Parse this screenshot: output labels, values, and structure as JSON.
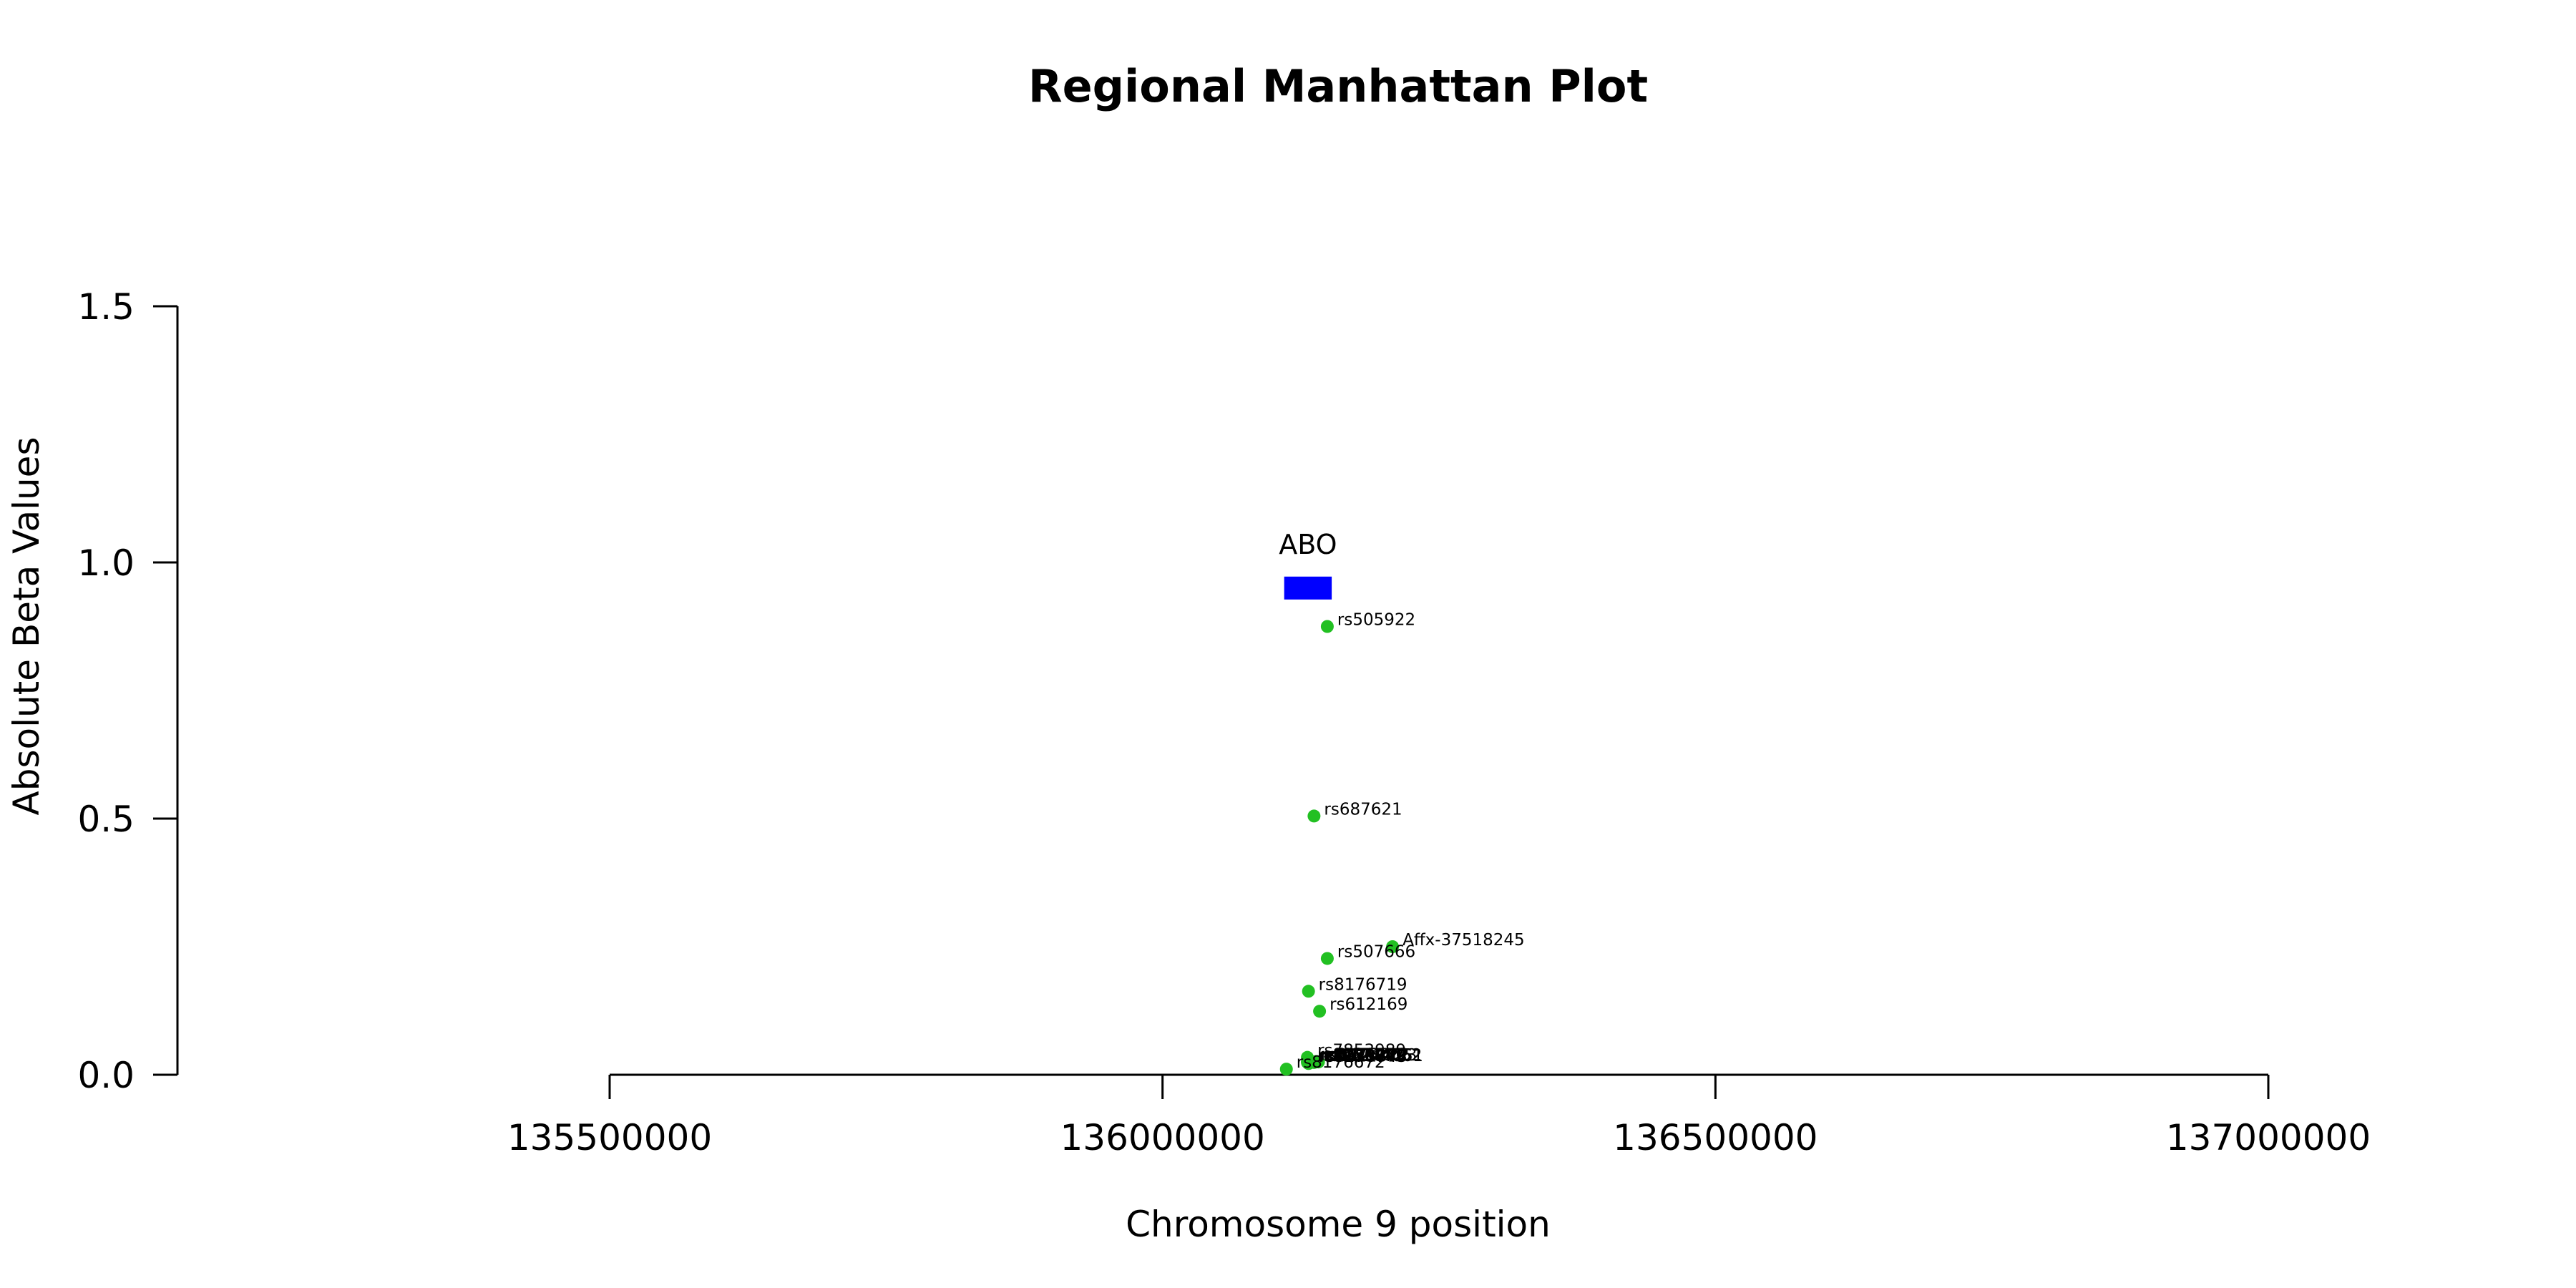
{
  "chart_data": {
    "type": "scatter",
    "title": "Regional Manhattan Plot",
    "xlabel": "Chromosome 9 position",
    "ylabel": "Absolute Beta Values",
    "xlim": [
      135110000,
      137000000
    ],
    "ylim": [
      0,
      1.5
    ],
    "x_ticks": [
      135500000,
      136000000,
      136500000,
      137000000
    ],
    "x_tick_labels": [
      "135500000",
      "136000000",
      "136500000",
      "137000000"
    ],
    "y_ticks": [
      0,
      0.5,
      1.0,
      1.5
    ],
    "y_tick_labels": [
      "0.0",
      "0.5",
      "1.0",
      "1.5"
    ],
    "grid": false,
    "point_color": "#22c022",
    "gene_color": "#0000ff",
    "genes": [
      {
        "name": "ABO",
        "start": 136110000,
        "end": 136153000,
        "y": 0.95
      }
    ],
    "points": [
      {
        "label": "rs505922",
        "x": 136149000,
        "y": 0.875
      },
      {
        "label": "rs687621",
        "x": 136137000,
        "y": 0.505
      },
      {
        "label": "Affx-37518245",
        "x": 136208000,
        "y": 0.25
      },
      {
        "label": "rs507666",
        "x": 136149000,
        "y": 0.227
      },
      {
        "label": "rs8176719",
        "x": 136132000,
        "y": 0.163
      },
      {
        "label": "rs612169",
        "x": 136142000,
        "y": 0.124
      },
      {
        "label": "rs7853989",
        "x": 136131000,
        "y": 0.034
      },
      {
        "label": "rs8176722",
        "x": 136134000,
        "y": 0.026
      },
      {
        "label": "rs8176746",
        "x": 136131000,
        "y": 0.026
      },
      {
        "label": "rs8176749",
        "x": 136131000,
        "y": 0.024
      },
      {
        "label": "rs1053878",
        "x": 136132000,
        "y": 0.023
      },
      {
        "label": "rs8176743",
        "x": 136132000,
        "y": 0.022
      },
      {
        "label": "rs11244052",
        "x": 136136000,
        "y": 0.025
      },
      {
        "label": "rs9411377",
        "x": 136133000,
        "y": 0.023
      },
      {
        "label": "rs2519093",
        "x": 136141000,
        "y": 0.025
      },
      {
        "label": "rs11244061",
        "x": 136137000,
        "y": 0.024
      },
      {
        "label": "rs657152",
        "x": 136139000,
        "y": 0.026
      },
      {
        "label": "rs8176672",
        "x": 136112000,
        "y": 0.011
      }
    ]
  }
}
